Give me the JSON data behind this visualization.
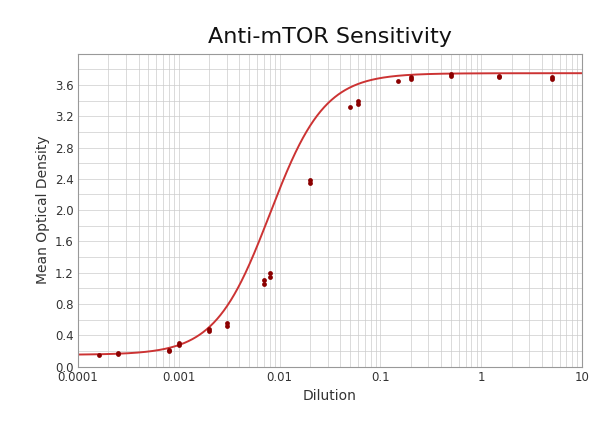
{
  "title": "Anti-mTOR Sensitivity",
  "xlabel": "Dilution",
  "ylabel": "Mean Optical Density",
  "title_fontsize": 16,
  "label_fontsize": 10,
  "data_color": "#8B0000",
  "line_color": "#CC3333",
  "background_color": "#FFFFFF",
  "grid_color": "#CCCCCC",
  "xlim": [
    0.0001,
    10
  ],
  "ylim": [
    0,
    4.0
  ],
  "yticks": [
    0,
    0.4,
    0.8,
    1.2,
    1.6,
    2.0,
    2.4,
    2.8,
    3.2,
    3.6
  ],
  "data_points": [
    [
      0.00016,
      0.15
    ],
    [
      0.00025,
      0.16
    ],
    [
      0.00025,
      0.17
    ],
    [
      0.0008,
      0.2
    ],
    [
      0.0008,
      0.21
    ],
    [
      0.001,
      0.28
    ],
    [
      0.001,
      0.3
    ],
    [
      0.002,
      0.45
    ],
    [
      0.002,
      0.48
    ],
    [
      0.003,
      0.52
    ],
    [
      0.003,
      0.56
    ],
    [
      0.007,
      1.05
    ],
    [
      0.007,
      1.1
    ],
    [
      0.008,
      1.15
    ],
    [
      0.008,
      1.2
    ],
    [
      0.02,
      2.35
    ],
    [
      0.02,
      2.38
    ],
    [
      0.05,
      3.32
    ],
    [
      0.06,
      3.35
    ],
    [
      0.06,
      3.4
    ],
    [
      0.15,
      3.65
    ],
    [
      0.2,
      3.68
    ],
    [
      0.2,
      3.7
    ],
    [
      0.5,
      3.72
    ],
    [
      0.5,
      3.74
    ],
    [
      1.5,
      3.7
    ],
    [
      1.5,
      3.72
    ],
    [
      5.0,
      3.68
    ],
    [
      5.0,
      3.7
    ]
  ],
  "four_pl_params": [
    0.15,
    3.75,
    0.008,
    1.6
  ]
}
